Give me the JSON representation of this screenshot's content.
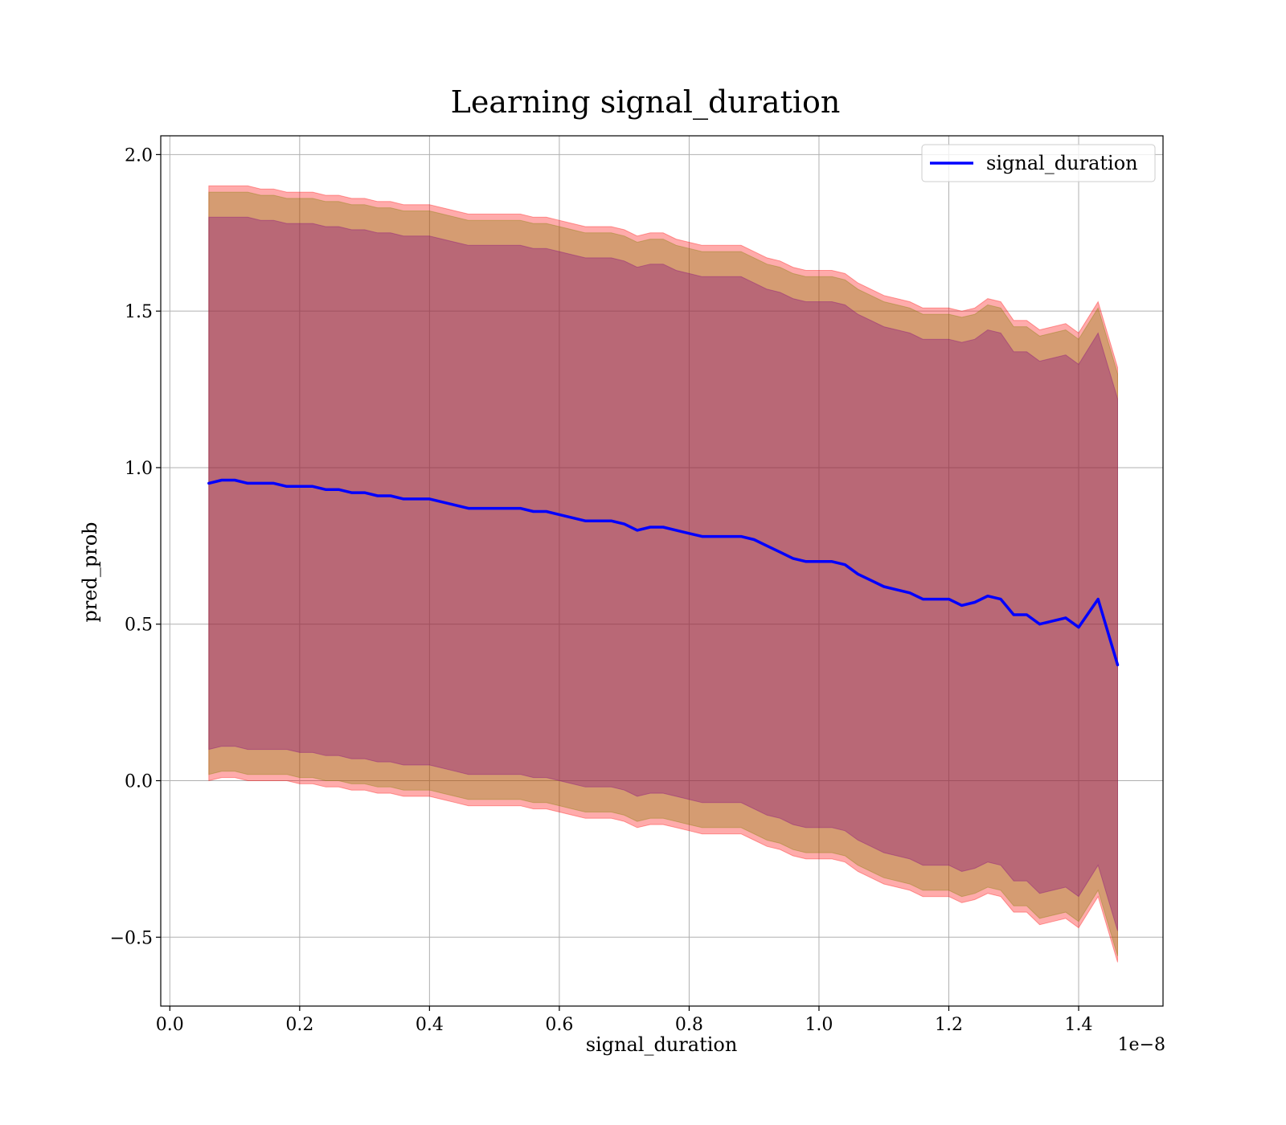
{
  "chart_data": {
    "type": "line",
    "title": "Learning signal_duration",
    "xlabel": "signal_duration",
    "ylabel": "pred_prob",
    "x_offset_label": "1e−8",
    "xlim": [
      -0.014,
      1.53
    ],
    "ylim": [
      -0.72,
      2.06
    ],
    "x_ticks": [
      0.0,
      0.2,
      0.4,
      0.6,
      0.8,
      1.0,
      1.2,
      1.4
    ],
    "x_tick_labels": [
      "0.0",
      "0.2",
      "0.4",
      "0.6",
      "0.8",
      "1.0",
      "1.2",
      "1.4"
    ],
    "y_ticks": [
      -0.5,
      0.0,
      0.5,
      1.0,
      1.5,
      2.0
    ],
    "y_tick_labels": [
      "−0.5",
      "0.0",
      "0.5",
      "1.0",
      "1.5",
      "2.0"
    ],
    "grid": true,
    "legend_position": "upper right",
    "x": [
      0.06,
      0.08,
      0.1,
      0.12,
      0.14,
      0.16,
      0.18,
      0.2,
      0.22,
      0.24,
      0.26,
      0.28,
      0.3,
      0.32,
      0.34,
      0.36,
      0.38,
      0.4,
      0.42,
      0.44,
      0.46,
      0.48,
      0.5,
      0.52,
      0.54,
      0.56,
      0.58,
      0.6,
      0.62,
      0.64,
      0.66,
      0.68,
      0.7,
      0.72,
      0.74,
      0.76,
      0.78,
      0.8,
      0.82,
      0.84,
      0.86,
      0.88,
      0.9,
      0.92,
      0.94,
      0.96,
      0.98,
      1.0,
      1.02,
      1.04,
      1.06,
      1.08,
      1.1,
      1.12,
      1.14,
      1.16,
      1.18,
      1.2,
      1.22,
      1.24,
      1.26,
      1.28,
      1.3,
      1.32,
      1.34,
      1.36,
      1.38,
      1.4,
      1.43,
      1.46
    ],
    "series": [
      {
        "name": "signal_duration",
        "color": "#0000ff",
        "values": [
          0.95,
          0.96,
          0.96,
          0.95,
          0.95,
          0.95,
          0.94,
          0.94,
          0.94,
          0.93,
          0.93,
          0.92,
          0.92,
          0.91,
          0.91,
          0.9,
          0.9,
          0.9,
          0.89,
          0.88,
          0.87,
          0.87,
          0.87,
          0.87,
          0.87,
          0.86,
          0.86,
          0.85,
          0.84,
          0.83,
          0.83,
          0.83,
          0.82,
          0.8,
          0.81,
          0.81,
          0.8,
          0.79,
          0.78,
          0.78,
          0.78,
          0.78,
          0.77,
          0.75,
          0.73,
          0.71,
          0.7,
          0.7,
          0.7,
          0.69,
          0.66,
          0.64,
          0.62,
          0.61,
          0.6,
          0.58,
          0.58,
          0.58,
          0.56,
          0.57,
          0.59,
          0.58,
          0.53,
          0.53,
          0.5,
          0.51,
          0.52,
          0.49,
          0.58,
          0.37
        ]
      }
    ],
    "bands": [
      {
        "color": "#ff0000",
        "opacity": 0.33,
        "upper": [
          1.9,
          1.9,
          1.9,
          1.9,
          1.89,
          1.89,
          1.88,
          1.88,
          1.88,
          1.87,
          1.87,
          1.86,
          1.86,
          1.85,
          1.85,
          1.84,
          1.84,
          1.84,
          1.83,
          1.82,
          1.81,
          1.81,
          1.81,
          1.81,
          1.81,
          1.8,
          1.8,
          1.79,
          1.78,
          1.77,
          1.77,
          1.77,
          1.76,
          1.74,
          1.75,
          1.75,
          1.73,
          1.72,
          1.71,
          1.71,
          1.71,
          1.71,
          1.69,
          1.67,
          1.66,
          1.64,
          1.63,
          1.63,
          1.63,
          1.62,
          1.59,
          1.57,
          1.55,
          1.54,
          1.53,
          1.51,
          1.51,
          1.51,
          1.5,
          1.51,
          1.54,
          1.53,
          1.47,
          1.47,
          1.44,
          1.45,
          1.46,
          1.43,
          1.53,
          1.32
        ],
        "lower": [
          0.0,
          0.01,
          0.01,
          0.0,
          0.0,
          0.0,
          0.0,
          -0.01,
          -0.01,
          -0.02,
          -0.02,
          -0.03,
          -0.03,
          -0.04,
          -0.04,
          -0.05,
          -0.05,
          -0.05,
          -0.06,
          -0.07,
          -0.08,
          -0.08,
          -0.08,
          -0.08,
          -0.08,
          -0.09,
          -0.09,
          -0.1,
          -0.11,
          -0.12,
          -0.12,
          -0.12,
          -0.13,
          -0.15,
          -0.14,
          -0.14,
          -0.15,
          -0.16,
          -0.17,
          -0.17,
          -0.17,
          -0.17,
          -0.19,
          -0.21,
          -0.22,
          -0.24,
          -0.25,
          -0.25,
          -0.25,
          -0.26,
          -0.29,
          -0.31,
          -0.33,
          -0.34,
          -0.35,
          -0.37,
          -0.37,
          -0.37,
          -0.39,
          -0.38,
          -0.36,
          -0.37,
          -0.42,
          -0.42,
          -0.46,
          -0.45,
          -0.44,
          -0.47,
          -0.37,
          -0.58
        ]
      },
      {
        "color": "#808000",
        "opacity": 0.33,
        "upper": [
          1.88,
          1.88,
          1.88,
          1.88,
          1.87,
          1.87,
          1.86,
          1.86,
          1.86,
          1.85,
          1.85,
          1.84,
          1.84,
          1.83,
          1.83,
          1.82,
          1.82,
          1.82,
          1.81,
          1.8,
          1.79,
          1.79,
          1.79,
          1.79,
          1.79,
          1.78,
          1.78,
          1.77,
          1.76,
          1.75,
          1.75,
          1.75,
          1.74,
          1.72,
          1.73,
          1.73,
          1.71,
          1.7,
          1.69,
          1.69,
          1.69,
          1.69,
          1.67,
          1.65,
          1.64,
          1.62,
          1.61,
          1.61,
          1.61,
          1.6,
          1.57,
          1.55,
          1.53,
          1.52,
          1.51,
          1.49,
          1.49,
          1.49,
          1.48,
          1.49,
          1.52,
          1.51,
          1.45,
          1.45,
          1.42,
          1.43,
          1.44,
          1.41,
          1.51,
          1.3
        ],
        "lower": [
          0.02,
          0.03,
          0.03,
          0.02,
          0.02,
          0.02,
          0.02,
          0.01,
          0.01,
          0.0,
          0.0,
          -0.01,
          -0.01,
          -0.02,
          -0.02,
          -0.03,
          -0.03,
          -0.03,
          -0.04,
          -0.05,
          -0.06,
          -0.06,
          -0.06,
          -0.06,
          -0.06,
          -0.07,
          -0.07,
          -0.08,
          -0.09,
          -0.1,
          -0.1,
          -0.1,
          -0.11,
          -0.13,
          -0.12,
          -0.12,
          -0.13,
          -0.14,
          -0.15,
          -0.15,
          -0.15,
          -0.15,
          -0.17,
          -0.19,
          -0.2,
          -0.22,
          -0.23,
          -0.23,
          -0.23,
          -0.24,
          -0.27,
          -0.29,
          -0.31,
          -0.32,
          -0.33,
          -0.35,
          -0.35,
          -0.35,
          -0.37,
          -0.36,
          -0.34,
          -0.35,
          -0.4,
          -0.4,
          -0.44,
          -0.43,
          -0.42,
          -0.45,
          -0.35,
          -0.56
        ]
      },
      {
        "color": "#800080",
        "opacity": 0.33,
        "upper": [
          1.8,
          1.8,
          1.8,
          1.8,
          1.79,
          1.79,
          1.78,
          1.78,
          1.78,
          1.77,
          1.77,
          1.76,
          1.76,
          1.75,
          1.75,
          1.74,
          1.74,
          1.74,
          1.73,
          1.72,
          1.71,
          1.71,
          1.71,
          1.71,
          1.71,
          1.7,
          1.7,
          1.69,
          1.68,
          1.67,
          1.67,
          1.67,
          1.66,
          1.64,
          1.65,
          1.65,
          1.63,
          1.62,
          1.61,
          1.61,
          1.61,
          1.61,
          1.59,
          1.57,
          1.56,
          1.54,
          1.53,
          1.53,
          1.53,
          1.52,
          1.49,
          1.47,
          1.45,
          1.44,
          1.43,
          1.41,
          1.41,
          1.41,
          1.4,
          1.41,
          1.44,
          1.43,
          1.37,
          1.37,
          1.34,
          1.35,
          1.36,
          1.33,
          1.43,
          1.22
        ],
        "lower": [
          0.1,
          0.11,
          0.11,
          0.1,
          0.1,
          0.1,
          0.1,
          0.09,
          0.09,
          0.08,
          0.08,
          0.07,
          0.07,
          0.06,
          0.06,
          0.05,
          0.05,
          0.05,
          0.04,
          0.03,
          0.02,
          0.02,
          0.02,
          0.02,
          0.02,
          0.01,
          0.01,
          0.0,
          -0.01,
          -0.02,
          -0.02,
          -0.02,
          -0.03,
          -0.05,
          -0.04,
          -0.04,
          -0.05,
          -0.06,
          -0.07,
          -0.07,
          -0.07,
          -0.07,
          -0.09,
          -0.11,
          -0.12,
          -0.14,
          -0.15,
          -0.15,
          -0.15,
          -0.16,
          -0.19,
          -0.21,
          -0.23,
          -0.24,
          -0.25,
          -0.27,
          -0.27,
          -0.27,
          -0.29,
          -0.28,
          -0.26,
          -0.27,
          -0.32,
          -0.32,
          -0.36,
          -0.35,
          -0.34,
          -0.37,
          -0.27,
          -0.48
        ]
      }
    ]
  }
}
